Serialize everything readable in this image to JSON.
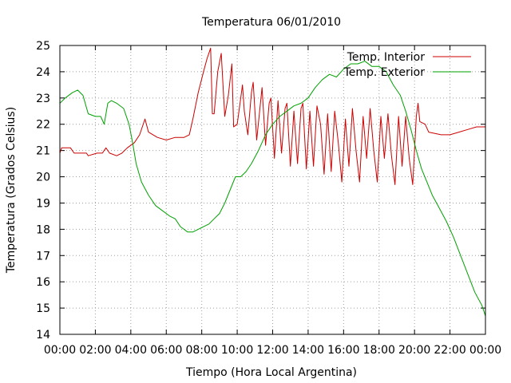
{
  "chart_data": {
    "type": "line",
    "title": "Temperatura 06/01/2010",
    "xlabel": "Tiempo (Hora Local Argentina)",
    "ylabel": "Temperatura (Grados Celsius)",
    "xlim": [
      0,
      24
    ],
    "ylim": [
      14,
      25
    ],
    "grid": true,
    "legend_position": "top-right",
    "x_ticks": [
      {
        "value": 0,
        "label": "00:00"
      },
      {
        "value": 2,
        "label": "02:00"
      },
      {
        "value": 4,
        "label": "04:00"
      },
      {
        "value": 6,
        "label": "06:00"
      },
      {
        "value": 8,
        "label": "08:00"
      },
      {
        "value": 10,
        "label": "10:00"
      },
      {
        "value": 12,
        "label": "12:00"
      },
      {
        "value": 14,
        "label": "14:00"
      },
      {
        "value": 16,
        "label": "16:00"
      },
      {
        "value": 18,
        "label": "18:00"
      },
      {
        "value": 20,
        "label": "20:00"
      },
      {
        "value": 22,
        "label": "22:00"
      },
      {
        "value": 24,
        "label": "00:00"
      }
    ],
    "y_ticks": [
      {
        "value": 14,
        "label": "14"
      },
      {
        "value": 15,
        "label": "15"
      },
      {
        "value": 16,
        "label": "16"
      },
      {
        "value": 17,
        "label": "17"
      },
      {
        "value": 18,
        "label": "18"
      },
      {
        "value": 19,
        "label": "19"
      },
      {
        "value": 20,
        "label": "20"
      },
      {
        "value": 21,
        "label": "21"
      },
      {
        "value": 22,
        "label": "22"
      },
      {
        "value": 23,
        "label": "23"
      },
      {
        "value": 24,
        "label": "24"
      },
      {
        "value": 25,
        "label": "25"
      }
    ],
    "series": [
      {
        "name": "Temp. Interior",
        "color": "#cc0000",
        "points": [
          [
            0.0,
            20.9
          ],
          [
            0.1,
            21.1
          ],
          [
            0.6,
            21.1
          ],
          [
            0.8,
            20.9
          ],
          [
            1.5,
            20.9
          ],
          [
            1.6,
            20.8
          ],
          [
            2.1,
            20.9
          ],
          [
            2.4,
            20.9
          ],
          [
            2.6,
            21.1
          ],
          [
            2.8,
            20.9
          ],
          [
            3.2,
            20.8
          ],
          [
            3.5,
            20.9
          ],
          [
            3.8,
            21.1
          ],
          [
            4.2,
            21.3
          ],
          [
            4.5,
            21.6
          ],
          [
            4.8,
            22.2
          ],
          [
            5.0,
            21.7
          ],
          [
            5.5,
            21.5
          ],
          [
            6.0,
            21.4
          ],
          [
            6.5,
            21.5
          ],
          [
            7.0,
            21.5
          ],
          [
            7.3,
            21.6
          ],
          [
            7.5,
            22.2
          ],
          [
            7.8,
            23.2
          ],
          [
            8.1,
            24.0
          ],
          [
            8.3,
            24.5
          ],
          [
            8.5,
            24.9
          ],
          [
            8.6,
            22.4
          ],
          [
            8.7,
            22.4
          ],
          [
            8.9,
            24.0
          ],
          [
            9.1,
            24.7
          ],
          [
            9.3,
            22.3
          ],
          [
            9.5,
            23.1
          ],
          [
            9.7,
            24.3
          ],
          [
            9.8,
            21.9
          ],
          [
            10.0,
            22.0
          ],
          [
            10.3,
            23.5
          ],
          [
            10.4,
            22.5
          ],
          [
            10.6,
            21.6
          ],
          [
            10.8,
            23.2
          ],
          [
            10.9,
            23.6
          ],
          [
            11.1,
            21.4
          ],
          [
            11.4,
            23.4
          ],
          [
            11.6,
            21.2
          ],
          [
            11.8,
            22.8
          ],
          [
            11.9,
            23.0
          ],
          [
            12.1,
            20.7
          ],
          [
            12.3,
            22.9
          ],
          [
            12.5,
            20.9
          ],
          [
            12.7,
            22.6
          ],
          [
            12.8,
            22.8
          ],
          [
            13.0,
            20.4
          ],
          [
            13.2,
            22.5
          ],
          [
            13.4,
            20.5
          ],
          [
            13.6,
            22.6
          ],
          [
            13.7,
            22.8
          ],
          [
            13.9,
            20.3
          ],
          [
            14.1,
            22.5
          ],
          [
            14.3,
            20.4
          ],
          [
            14.5,
            22.7
          ],
          [
            14.7,
            22.0
          ],
          [
            14.9,
            20.1
          ],
          [
            15.1,
            22.4
          ],
          [
            15.3,
            20.2
          ],
          [
            15.5,
            22.5
          ],
          [
            15.7,
            21.3
          ],
          [
            15.9,
            19.8
          ],
          [
            16.1,
            22.2
          ],
          [
            16.3,
            20.4
          ],
          [
            16.5,
            22.6
          ],
          [
            16.7,
            21.0
          ],
          [
            16.9,
            19.8
          ],
          [
            17.1,
            22.3
          ],
          [
            17.3,
            20.7
          ],
          [
            17.5,
            22.6
          ],
          [
            17.7,
            21.0
          ],
          [
            17.9,
            19.8
          ],
          [
            18.1,
            22.3
          ],
          [
            18.3,
            20.7
          ],
          [
            18.5,
            22.4
          ],
          [
            18.7,
            20.8
          ],
          [
            18.9,
            19.7
          ],
          [
            19.1,
            22.3
          ],
          [
            19.3,
            20.4
          ],
          [
            19.5,
            22.3
          ],
          [
            19.7,
            20.7
          ],
          [
            19.9,
            19.7
          ],
          [
            20.1,
            22.3
          ],
          [
            20.2,
            22.8
          ],
          [
            20.3,
            22.1
          ],
          [
            20.6,
            22.0
          ],
          [
            20.8,
            21.7
          ],
          [
            21.5,
            21.6
          ],
          [
            22.0,
            21.6
          ],
          [
            22.5,
            21.7
          ],
          [
            23.0,
            21.8
          ],
          [
            23.5,
            21.9
          ],
          [
            24.0,
            21.9
          ]
        ]
      },
      {
        "name": "Temp. Exterior",
        "color": "#00a000",
        "points": [
          [
            0.0,
            22.8
          ],
          [
            0.3,
            23.0
          ],
          [
            0.7,
            23.2
          ],
          [
            1.0,
            23.3
          ],
          [
            1.3,
            23.1
          ],
          [
            1.6,
            22.4
          ],
          [
            2.0,
            22.3
          ],
          [
            2.3,
            22.3
          ],
          [
            2.5,
            22.0
          ],
          [
            2.7,
            22.8
          ],
          [
            2.9,
            22.9
          ],
          [
            3.2,
            22.8
          ],
          [
            3.6,
            22.6
          ],
          [
            3.9,
            22.0
          ],
          [
            4.1,
            21.3
          ],
          [
            4.3,
            20.5
          ],
          [
            4.6,
            19.8
          ],
          [
            5.0,
            19.3
          ],
          [
            5.4,
            18.9
          ],
          [
            5.8,
            18.7
          ],
          [
            6.2,
            18.5
          ],
          [
            6.5,
            18.4
          ],
          [
            6.8,
            18.1
          ],
          [
            7.0,
            18.0
          ],
          [
            7.2,
            17.9
          ],
          [
            7.5,
            17.9
          ],
          [
            7.8,
            18.0
          ],
          [
            8.1,
            18.1
          ],
          [
            8.4,
            18.2
          ],
          [
            8.7,
            18.4
          ],
          [
            9.0,
            18.6
          ],
          [
            9.3,
            19.0
          ],
          [
            9.6,
            19.5
          ],
          [
            9.9,
            20.0
          ],
          [
            10.2,
            20.0
          ],
          [
            10.5,
            20.2
          ],
          [
            10.8,
            20.5
          ],
          [
            11.2,
            21.0
          ],
          [
            11.6,
            21.6
          ],
          [
            12.0,
            22.0
          ],
          [
            12.4,
            22.3
          ],
          [
            12.8,
            22.5
          ],
          [
            13.2,
            22.7
          ],
          [
            13.6,
            22.8
          ],
          [
            14.0,
            23.0
          ],
          [
            14.4,
            23.4
          ],
          [
            14.8,
            23.7
          ],
          [
            15.2,
            23.9
          ],
          [
            15.6,
            23.8
          ],
          [
            16.0,
            24.1
          ],
          [
            16.4,
            24.3
          ],
          [
            16.8,
            24.3
          ],
          [
            17.2,
            24.4
          ],
          [
            17.6,
            24.2
          ],
          [
            18.0,
            24.2
          ],
          [
            18.4,
            24.0
          ],
          [
            18.8,
            23.5
          ],
          [
            19.2,
            23.1
          ],
          [
            19.5,
            22.5
          ],
          [
            19.8,
            21.8
          ],
          [
            20.1,
            21.0
          ],
          [
            20.4,
            20.3
          ],
          [
            20.7,
            19.8
          ],
          [
            21.0,
            19.3
          ],
          [
            21.4,
            18.8
          ],
          [
            21.8,
            18.3
          ],
          [
            22.2,
            17.7
          ],
          [
            22.6,
            17.0
          ],
          [
            23.0,
            16.3
          ],
          [
            23.4,
            15.6
          ],
          [
            23.8,
            15.1
          ],
          [
            24.0,
            14.7
          ]
        ]
      }
    ]
  }
}
